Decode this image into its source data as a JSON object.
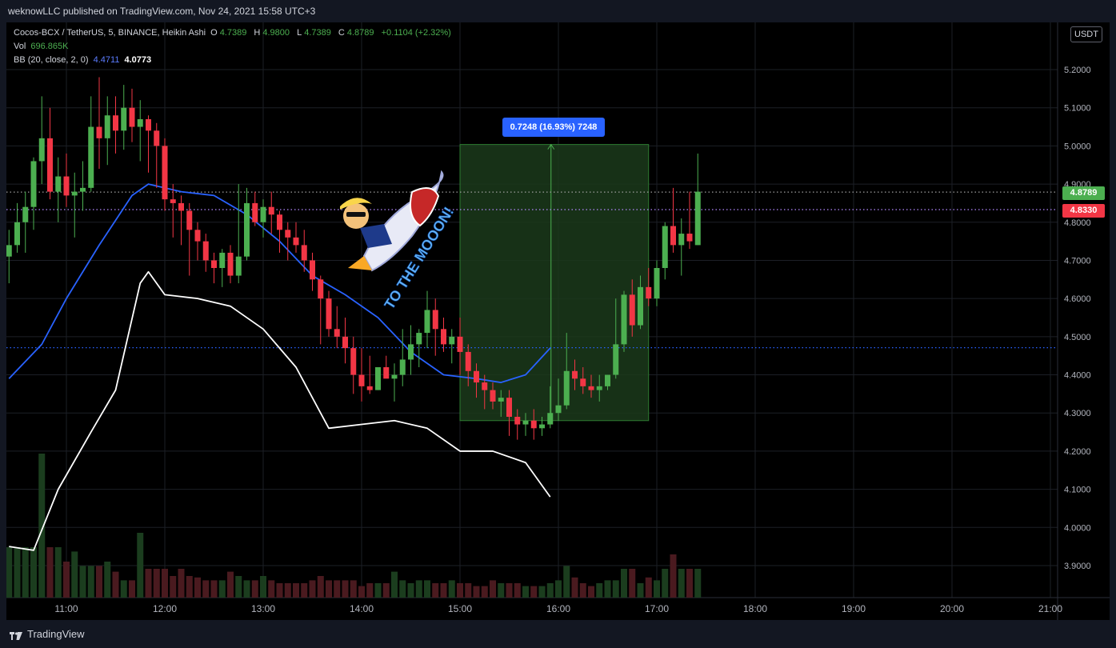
{
  "header": {
    "publisher_text": "weknowLLC published on TradingView.com, Nov 24, 2021 15:58 UTC+3"
  },
  "legend": {
    "symbol": "Cocos-BCX / TetherUS, 5, BINANCE, Heikin Ashi",
    "o_label": "O",
    "o_value": "4.7389",
    "h_label": "H",
    "h_value": "4.9800",
    "l_label": "L",
    "l_value": "4.7389",
    "c_label": "C",
    "c_value": "4.8789",
    "change": "+0.1104 (+2.32%)",
    "vol_label": "Vol",
    "vol_value": "696.865K",
    "bb_label": "BB (20, close, 2, 0)",
    "bb_basis": "4.4711",
    "bb_lower": "4.0773"
  },
  "unit_badge": "USDT",
  "price_tags": {
    "last": "4.8789",
    "line": "4.8330"
  },
  "measure": {
    "label": "0.7248 (16.93%) 7248"
  },
  "sticker": {
    "text": "TO THE MOOON!"
  },
  "footer": {
    "brand": "TradingView"
  },
  "colors": {
    "up": "#4caf50",
    "down": "#f23645",
    "bb_basis": "#2962ff",
    "bb_lower": "#ffffff",
    "measure_fill": "#1b3a1b",
    "tag_green": "#4caf50",
    "tag_red": "#f23645"
  },
  "chart_data": {
    "type": "candlestick",
    "candle_style": "Heikin Ashi",
    "interval": "5",
    "y_axis_ticks": [
      "5.2000",
      "5.1000",
      "5.0000",
      "4.9000",
      "4.8000",
      "4.7000",
      "4.6000",
      "4.5000",
      "4.4000",
      "4.3000",
      "4.2000",
      "4.1000",
      "4.0000",
      "3.9000"
    ],
    "x_axis_ticks": [
      "11:00",
      "12:00",
      "13:00",
      "14:00",
      "15:00",
      "16:00",
      "17:00",
      "18:00",
      "19:00",
      "20:00",
      "21:00"
    ],
    "ylim": [
      3.82,
      5.32
    ],
    "candles": [
      {
        "o": 4.71,
        "h": 4.78,
        "l": 4.64,
        "c": 4.74
      },
      {
        "o": 4.74,
        "h": 4.85,
        "l": 4.72,
        "c": 4.8
      },
      {
        "o": 4.8,
        "h": 4.88,
        "l": 4.72,
        "c": 4.84
      },
      {
        "o": 4.84,
        "h": 4.97,
        "l": 4.78,
        "c": 4.96
      },
      {
        "o": 4.96,
        "h": 5.13,
        "l": 4.9,
        "c": 5.02
      },
      {
        "o": 5.02,
        "h": 5.1,
        "l": 4.86,
        "c": 4.88
      },
      {
        "o": 4.88,
        "h": 4.97,
        "l": 4.8,
        "c": 4.92
      },
      {
        "o": 4.92,
        "h": 4.98,
        "l": 4.84,
        "c": 4.87
      },
      {
        "o": 4.87,
        "h": 4.93,
        "l": 4.76,
        "c": 4.88
      },
      {
        "o": 4.88,
        "h": 4.96,
        "l": 4.83,
        "c": 4.89
      },
      {
        "o": 4.89,
        "h": 5.13,
        "l": 4.88,
        "c": 5.05
      },
      {
        "o": 5.05,
        "h": 5.18,
        "l": 4.94,
        "c": 5.02
      },
      {
        "o": 5.02,
        "h": 5.13,
        "l": 4.95,
        "c": 5.08
      },
      {
        "o": 5.08,
        "h": 5.13,
        "l": 4.98,
        "c": 5.04
      },
      {
        "o": 5.04,
        "h": 5.16,
        "l": 4.99,
        "c": 5.1
      },
      {
        "o": 5.1,
        "h": 5.15,
        "l": 5.01,
        "c": 5.05
      },
      {
        "o": 5.05,
        "h": 5.12,
        "l": 4.96,
        "c": 5.07
      },
      {
        "o": 5.07,
        "h": 5.08,
        "l": 4.93,
        "c": 5.04
      },
      {
        "o": 5.04,
        "h": 5.06,
        "l": 4.89,
        "c": 5.0
      },
      {
        "o": 5.0,
        "h": 5.02,
        "l": 4.83,
        "c": 4.86
      },
      {
        "o": 4.86,
        "h": 4.9,
        "l": 4.76,
        "c": 4.85
      },
      {
        "o": 4.85,
        "h": 4.87,
        "l": 4.74,
        "c": 4.83
      },
      {
        "o": 4.83,
        "h": 4.85,
        "l": 4.66,
        "c": 4.78
      },
      {
        "o": 4.78,
        "h": 4.8,
        "l": 4.7,
        "c": 4.75
      },
      {
        "o": 4.75,
        "h": 4.77,
        "l": 4.67,
        "c": 4.7
      },
      {
        "o": 4.7,
        "h": 4.72,
        "l": 4.64,
        "c": 4.68
      },
      {
        "o": 4.68,
        "h": 4.73,
        "l": 4.63,
        "c": 4.72
      },
      {
        "o": 4.72,
        "h": 4.74,
        "l": 4.64,
        "c": 4.66
      },
      {
        "o": 4.66,
        "h": 4.9,
        "l": 4.64,
        "c": 4.71
      },
      {
        "o": 4.71,
        "h": 4.89,
        "l": 4.7,
        "c": 4.85
      },
      {
        "o": 4.85,
        "h": 4.88,
        "l": 4.79,
        "c": 4.8
      },
      {
        "o": 4.8,
        "h": 4.86,
        "l": 4.76,
        "c": 4.84
      },
      {
        "o": 4.84,
        "h": 4.88,
        "l": 4.77,
        "c": 4.82
      },
      {
        "o": 4.82,
        "h": 4.83,
        "l": 4.72,
        "c": 4.78
      },
      {
        "o": 4.78,
        "h": 4.8,
        "l": 4.7,
        "c": 4.76
      },
      {
        "o": 4.76,
        "h": 4.8,
        "l": 4.72,
        "c": 4.74
      },
      {
        "o": 4.74,
        "h": 4.78,
        "l": 4.67,
        "c": 4.7
      },
      {
        "o": 4.7,
        "h": 4.72,
        "l": 4.62,
        "c": 4.65
      },
      {
        "o": 4.65,
        "h": 4.66,
        "l": 4.48,
        "c": 4.6
      },
      {
        "o": 4.6,
        "h": 4.62,
        "l": 4.5,
        "c": 4.52
      },
      {
        "o": 4.52,
        "h": 4.58,
        "l": 4.47,
        "c": 4.5
      },
      {
        "o": 4.5,
        "h": 4.55,
        "l": 4.43,
        "c": 4.47
      },
      {
        "o": 4.47,
        "h": 4.5,
        "l": 4.35,
        "c": 4.4
      },
      {
        "o": 4.4,
        "h": 4.47,
        "l": 4.33,
        "c": 4.37
      },
      {
        "o": 4.37,
        "h": 4.45,
        "l": 4.35,
        "c": 4.36
      },
      {
        "o": 4.36,
        "h": 4.42,
        "l": 4.36,
        "c": 4.42
      },
      {
        "o": 4.42,
        "h": 4.45,
        "l": 4.4,
        "c": 4.39
      },
      {
        "o": 4.39,
        "h": 4.43,
        "l": 4.33,
        "c": 4.4
      },
      {
        "o": 4.4,
        "h": 4.52,
        "l": 4.37,
        "c": 4.44
      },
      {
        "o": 4.44,
        "h": 4.53,
        "l": 4.4,
        "c": 4.48
      },
      {
        "o": 4.48,
        "h": 4.52,
        "l": 4.42,
        "c": 4.51
      },
      {
        "o": 4.51,
        "h": 4.62,
        "l": 4.47,
        "c": 4.57
      },
      {
        "o": 4.57,
        "h": 4.6,
        "l": 4.45,
        "c": 4.52
      },
      {
        "o": 4.52,
        "h": 4.55,
        "l": 4.46,
        "c": 4.48
      },
      {
        "o": 4.48,
        "h": 4.52,
        "l": 4.43,
        "c": 4.5
      },
      {
        "o": 4.5,
        "h": 4.55,
        "l": 4.4,
        "c": 4.46
      },
      {
        "o": 4.46,
        "h": 4.48,
        "l": 4.37,
        "c": 4.41
      },
      {
        "o": 4.41,
        "h": 4.43,
        "l": 4.34,
        "c": 4.38
      },
      {
        "o": 4.38,
        "h": 4.4,
        "l": 4.31,
        "c": 4.36
      },
      {
        "o": 4.36,
        "h": 4.38,
        "l": 4.31,
        "c": 4.33
      },
      {
        "o": 4.33,
        "h": 4.36,
        "l": 4.29,
        "c": 4.34
      },
      {
        "o": 4.34,
        "h": 4.36,
        "l": 4.24,
        "c": 4.29
      },
      {
        "o": 4.29,
        "h": 4.31,
        "l": 4.23,
        "c": 4.27
      },
      {
        "o": 4.27,
        "h": 4.3,
        "l": 4.24,
        "c": 4.28
      },
      {
        "o": 4.28,
        "h": 4.31,
        "l": 4.23,
        "c": 4.26
      },
      {
        "o": 4.26,
        "h": 4.29,
        "l": 4.24,
        "c": 4.27
      },
      {
        "o": 4.27,
        "h": 4.37,
        "l": 4.26,
        "c": 4.3
      },
      {
        "o": 4.3,
        "h": 4.39,
        "l": 4.28,
        "c": 4.32
      },
      {
        "o": 4.32,
        "h": 4.51,
        "l": 4.31,
        "c": 4.41
      },
      {
        "o": 4.41,
        "h": 4.44,
        "l": 4.36,
        "c": 4.39
      },
      {
        "o": 4.39,
        "h": 4.42,
        "l": 4.35,
        "c": 4.37
      },
      {
        "o": 4.37,
        "h": 4.4,
        "l": 4.34,
        "c": 4.36
      },
      {
        "o": 4.36,
        "h": 4.4,
        "l": 4.33,
        "c": 4.37
      },
      {
        "o": 4.37,
        "h": 4.4,
        "l": 4.36,
        "c": 4.4
      },
      {
        "o": 4.4,
        "h": 4.6,
        "l": 4.39,
        "c": 4.48
      },
      {
        "o": 4.48,
        "h": 4.62,
        "l": 4.46,
        "c": 4.61
      },
      {
        "o": 4.61,
        "h": 4.65,
        "l": 4.5,
        "c": 4.53
      },
      {
        "o": 4.53,
        "h": 4.66,
        "l": 4.52,
        "c": 4.63
      },
      {
        "o": 4.63,
        "h": 4.68,
        "l": 4.58,
        "c": 4.6
      },
      {
        "o": 4.6,
        "h": 4.7,
        "l": 4.58,
        "c": 4.68
      },
      {
        "o": 4.68,
        "h": 4.8,
        "l": 4.65,
        "c": 4.79
      },
      {
        "o": 4.79,
        "h": 4.89,
        "l": 4.72,
        "c": 4.74
      },
      {
        "o": 4.74,
        "h": 4.81,
        "l": 4.66,
        "c": 4.77
      },
      {
        "o": 4.77,
        "h": 4.88,
        "l": 4.73,
        "c": 4.75
      },
      {
        "o": 4.74,
        "h": 4.98,
        "l": 4.74,
        "c": 4.88
      }
    ],
    "candle_time_start": "10:25",
    "candle_time_step_minutes": 5,
    "bb_basis": [
      {
        "t": "10:25",
        "v": 4.39
      },
      {
        "t": "10:45",
        "v": 4.48
      },
      {
        "t": "11:00",
        "v": 4.6
      },
      {
        "t": "11:20",
        "v": 4.74
      },
      {
        "t": "11:40",
        "v": 4.87
      },
      {
        "t": "11:50",
        "v": 4.9
      },
      {
        "t": "12:10",
        "v": 4.88
      },
      {
        "t": "12:30",
        "v": 4.87
      },
      {
        "t": "12:50",
        "v": 4.82
      },
      {
        "t": "13:10",
        "v": 4.75
      },
      {
        "t": "13:30",
        "v": 4.66
      },
      {
        "t": "13:50",
        "v": 4.61
      },
      {
        "t": "14:10",
        "v": 4.55
      },
      {
        "t": "14:30",
        "v": 4.46
      },
      {
        "t": "14:50",
        "v": 4.4
      },
      {
        "t": "15:10",
        "v": 4.39
      },
      {
        "t": "15:25",
        "v": 4.38
      },
      {
        "t": "15:40",
        "v": 4.4
      },
      {
        "t": "15:55",
        "v": 4.47
      }
    ],
    "bb_lower": [
      {
        "t": "10:25",
        "v": 3.95
      },
      {
        "t": "10:40",
        "v": 3.94
      },
      {
        "t": "10:55",
        "v": 4.1
      },
      {
        "t": "11:15",
        "v": 4.25
      },
      {
        "t": "11:30",
        "v": 4.36
      },
      {
        "t": "11:45",
        "v": 4.64
      },
      {
        "t": "11:50",
        "v": 4.67
      },
      {
        "t": "12:00",
        "v": 4.61
      },
      {
        "t": "12:20",
        "v": 4.6
      },
      {
        "t": "12:40",
        "v": 4.58
      },
      {
        "t": "13:00",
        "v": 4.52
      },
      {
        "t": "13:20",
        "v": 4.42
      },
      {
        "t": "13:40",
        "v": 4.26
      },
      {
        "t": "14:00",
        "v": 4.27
      },
      {
        "t": "14:20",
        "v": 4.28
      },
      {
        "t": "14:40",
        "v": 4.26
      },
      {
        "t": "15:00",
        "v": 4.2
      },
      {
        "t": "15:20",
        "v": 4.2
      },
      {
        "t": "15:40",
        "v": 4.17
      },
      {
        "t": "15:55",
        "v": 4.08
      }
    ],
    "volumes_relative": [
      0.35,
      0.35,
      0.35,
      0.35,
      1.0,
      0.35,
      0.35,
      0.25,
      0.32,
      0.22,
      0.22,
      0.22,
      0.25,
      0.18,
      0.12,
      0.12,
      0.45,
      0.2,
      0.2,
      0.2,
      0.15,
      0.2,
      0.15,
      0.14,
      0.12,
      0.12,
      0.12,
      0.18,
      0.15,
      0.12,
      0.12,
      0.15,
      0.12,
      0.1,
      0.1,
      0.1,
      0.1,
      0.12,
      0.15,
      0.12,
      0.12,
      0.12,
      0.12,
      0.08,
      0.1,
      0.1,
      0.1,
      0.18,
      0.12,
      0.1,
      0.12,
      0.12,
      0.1,
      0.1,
      0.12,
      0.1,
      0.1,
      0.08,
      0.08,
      0.12,
      0.1,
      0.1,
      0.1,
      0.08,
      0.08,
      0.08,
      0.1,
      0.12,
      0.22,
      0.14,
      0.1,
      0.08,
      0.1,
      0.12,
      0.12,
      0.2,
      0.2,
      0.1,
      0.14,
      0.12,
      0.2,
      0.3,
      0.2,
      0.2,
      0.2
    ],
    "horizontal_lines": [
      {
        "price": 4.8789,
        "style": "dotted",
        "color": "#9e9e9e"
      },
      {
        "price": 4.833,
        "style": "dotted",
        "color": "#b388ff"
      },
      {
        "price": 4.4711,
        "style": "dotted",
        "color": "#2962ff"
      }
    ],
    "measure_box": {
      "from_time": "15:00",
      "to_time": "16:55",
      "from_price": 4.28,
      "to_price": 5.0037
    },
    "grid": true
  }
}
